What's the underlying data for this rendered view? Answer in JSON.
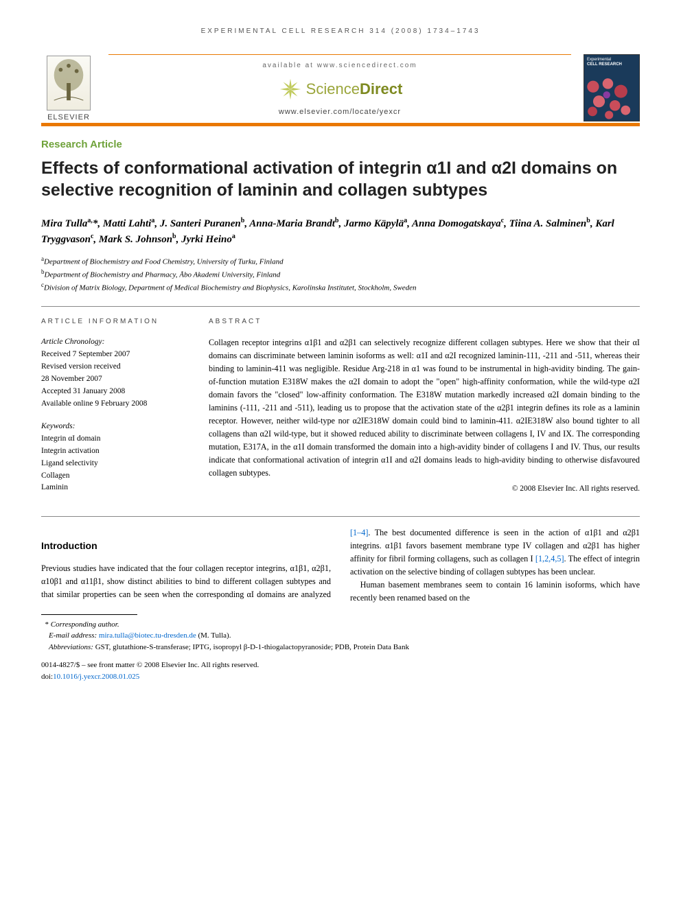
{
  "running_head": "EXPERIMENTAL CELL RESEARCH 314 (2008) 1734–1743",
  "masthead": {
    "publisher": "ELSEVIER",
    "available_at": "available at www.sciencedirect.com",
    "sd_word1": "Science",
    "sd_word2": "Direct",
    "locate": "www.elsevier.com/locate/yexcr",
    "cover_journal_line1": "Experimental",
    "cover_journal_line2": "CELL RESEARCH",
    "accent_color": "#e97800",
    "sd_color": "#9aa53a"
  },
  "article_type": "Research Article",
  "title": "Effects of conformational activation of integrin α1I and α2I domains on selective recognition of laminin and collagen subtypes",
  "authors_html": "Mira Tulla<sup>a,</sup>*, Matti Lahti<sup>a</sup>, J. Santeri Puranen<sup>b</sup>, Anna-Maria Brandt<sup>b</sup>, Jarmo Käpylä<sup>a</sup>, Anna Domogatskaya<sup>c</sup>, Tiina A. Salminen<sup>b</sup>, Karl Tryggvason<sup>c</sup>, Mark S. Johnson<sup>b</sup>, Jyrki Heino<sup>a</sup>",
  "affiliations": [
    {
      "sup": "a",
      "text": "Department of Biochemistry and Food Chemistry, University of Turku, Finland"
    },
    {
      "sup": "b",
      "text": "Department of Biochemistry and Pharmacy, Åbo Akademi University, Finland"
    },
    {
      "sup": "c",
      "text": "Division of Matrix Biology, Department of Medical Biochemistry and Biophysics, Karolinska Institutet, Stockholm, Sweden"
    }
  ],
  "info": {
    "head": "ARTICLE INFORMATION",
    "chron_label": "Article Chronology:",
    "chron": [
      "Received 7 September 2007",
      "Revised version received",
      "28 November 2007",
      "Accepted 31 January 2008",
      "Available online 9 February 2008"
    ],
    "kw_label": "Keywords:",
    "keywords": [
      "Integrin αI domain",
      "Integrin activation",
      "Ligand selectivity",
      "Collagen",
      "Laminin"
    ]
  },
  "abstract": {
    "head": "ABSTRACT",
    "text": "Collagen receptor integrins α1β1 and α2β1 can selectively recognize different collagen subtypes. Here we show that their αI domains can discriminate between laminin isoforms as well: α1I and α2I recognized laminin-111, -211 and -511, whereas their binding to laminin-411 was negligible. Residue Arg-218 in α1 was found to be instrumental in high-avidity binding. The gain-of-function mutation E318W makes the α2I domain to adopt the \"open\" high-affinity conformation, while the wild-type α2I domain favors the \"closed\" low-affinity conformation. The E318W mutation markedly increased α2I domain binding to the laminins (-111, -211 and -511), leading us to propose that the activation state of the α2β1 integrin defines its role as a laminin receptor. However, neither wild-type nor α2IE318W domain could bind to laminin-411. α2IE318W also bound tighter to all collagens than α2I wild-type, but it showed reduced ability to discriminate between collagens I, IV and IX. The corresponding mutation, E317A, in the α1I domain transformed the domain into a high-avidity binder of collagens I and IV. Thus, our results indicate that conformational activation of integrin α1I and α2I domains leads to high-avidity binding to otherwise disfavoured collagen subtypes.",
    "copyright": "© 2008 Elsevier Inc. All rights reserved."
  },
  "intro": {
    "head": "Introduction",
    "para1_pre": "Previous studies have indicated that the four collagen receptor integrins, α1β1, α2β1, α10β1 and α11β1, show distinct abilities to bind to different collagen subtypes and that similar properties can be seen when the corresponding αI domains are analyzed ",
    "ref1": "[1–4]",
    "para1_post": ". The best documented difference is seen in the action of",
    "para2_pre": "α1β1 and α2β1 integrins. α1β1 favors basement membrane type IV collagen and α2β1 has higher affinity for fibril forming collagens, such as collagen I ",
    "ref2": "[1,2,4,5]",
    "para2_post": ". The effect of integrin activation on the selective binding of collagen subtypes has been unclear.",
    "para3": "Human basement membranes seem to contain 16 laminin isoforms, which have recently been renamed based on the"
  },
  "footnotes": {
    "corr_label": "Corresponding author.",
    "email_label": "E-mail address:",
    "email": "mira.tulla@biotec.tu-dresden.de",
    "email_paren": "(M. Tulla).",
    "abbrev_label": "Abbreviations:",
    "abbrev_text": "GST, glutathione-S-transferase; IPTG, isopropyl β-D-1-thiogalactopyranoside; PDB, Protein Data Bank"
  },
  "footer": {
    "issn_line": "0014-4827/$ – see front matter © 2008 Elsevier Inc. All rights reserved.",
    "doi_label": "doi:",
    "doi": "10.1016/j.yexcr.2008.01.025"
  }
}
